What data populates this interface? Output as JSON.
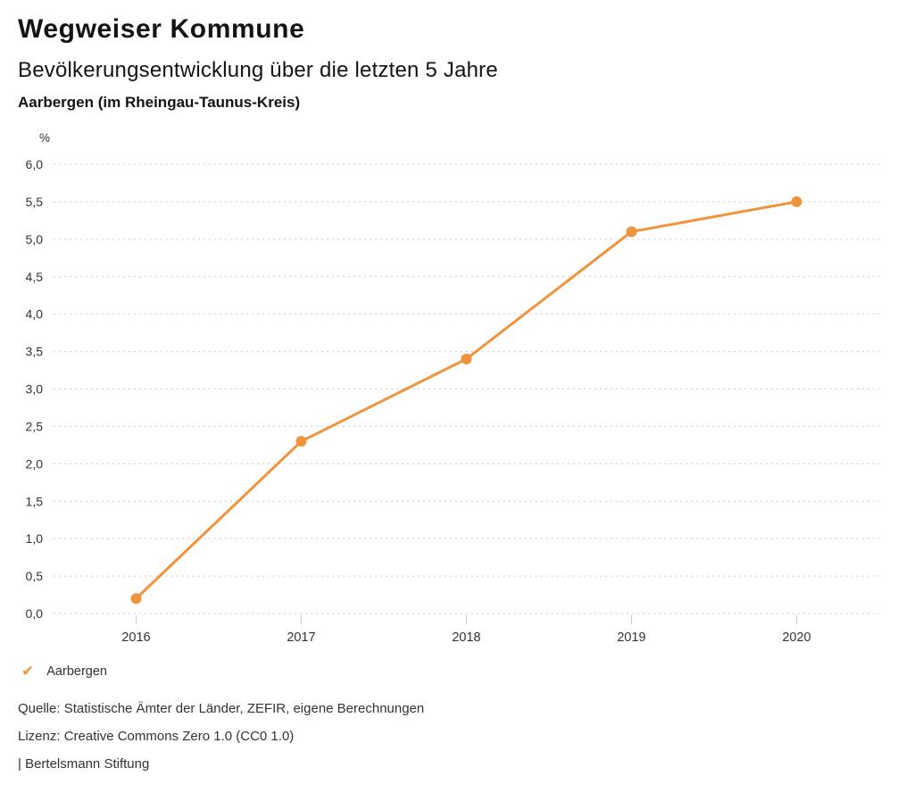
{
  "header": {
    "title": "Wegweiser Kommune",
    "subtitle": "Bevölkerungsentwicklung über die letzten 5 Jahre",
    "location": "Aarbergen (im Rheingau-Taunus-Kreis)"
  },
  "chart_data": {
    "type": "line",
    "categories": [
      "2016",
      "2017",
      "2018",
      "2019",
      "2020"
    ],
    "series": [
      {
        "name": "Aarbergen",
        "values": [
          0.2,
          2.3,
          3.4,
          5.1,
          5.5
        ],
        "color": "#f0943c"
      }
    ],
    "title": "",
    "xlabel": "",
    "ylabel": "%",
    "ylim": [
      0,
      6
    ],
    "ytick_step": 0.5,
    "ytick_labels": [
      "0,0",
      "0,5",
      "1,0",
      "1,5",
      "2,0",
      "2,5",
      "3,0",
      "3,5",
      "4,0",
      "4,5",
      "5,0",
      "5,5",
      "6,0"
    ],
    "grid": "horizontal-dotted",
    "legend_position": "bottom-left"
  },
  "legend": {
    "check_icon": "✔",
    "label": "Aarbergen"
  },
  "footer": {
    "source": "Quelle: Statistische Ämter der Länder, ZEFIR, eigene Berechnungen",
    "license": "Lizenz: Creative Commons Zero 1.0 (CC0 1.0)",
    "attribution": "| Bertelsmann Stiftung"
  },
  "colors": {
    "accent": "#f0943c",
    "grid": "#cccccc",
    "tick": "#cccccc",
    "axis_text": "#333333",
    "title_text": "#141414"
  }
}
